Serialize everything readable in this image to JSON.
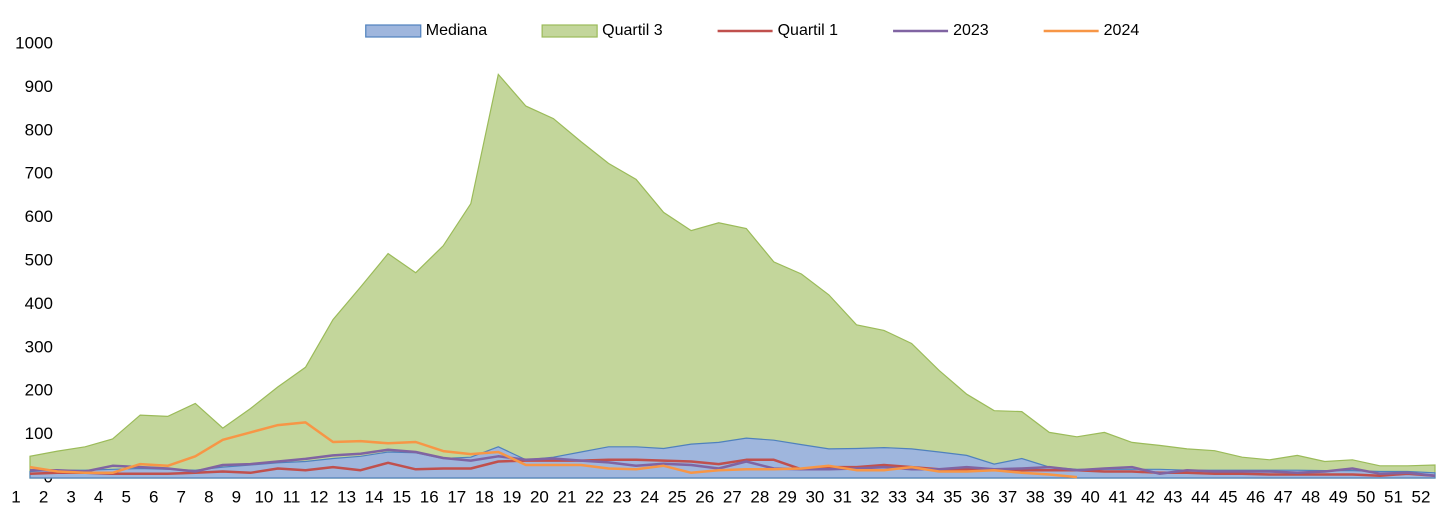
{
  "chart_data": {
    "type": "area",
    "categories": [
      "1",
      "2",
      "3",
      "4",
      "5",
      "6",
      "7",
      "8",
      "9",
      "10",
      "11",
      "12",
      "13",
      "14",
      "15",
      "16",
      "17",
      "18",
      "19",
      "20",
      "21",
      "22",
      "23",
      "24",
      "25",
      "26",
      "27",
      "28",
      "29",
      "30",
      "31",
      "32",
      "33",
      "34",
      "35",
      "36",
      "37",
      "38",
      "39",
      "40",
      "41",
      "42",
      "43",
      "44",
      "45",
      "46",
      "47",
      "48",
      "49",
      "50",
      "51",
      "52"
    ],
    "ylim": [
      0,
      1000
    ],
    "yticks": [
      0,
      100,
      200,
      300,
      400,
      500,
      600,
      700,
      800,
      900,
      1000
    ],
    "grid": false,
    "legend": "top",
    "series": [
      {
        "name": "Mediana",
        "type": "area",
        "color": "#4f81bd",
        "fill": "#9fb6dd",
        "values": [
          15,
          18,
          18,
          20,
          22,
          20,
          18,
          25,
          30,
          35,
          38,
          45,
          50,
          60,
          58,
          45,
          48,
          72,
          42,
          48,
          60,
          72,
          72,
          68,
          78,
          82,
          92,
          87,
          77,
          67,
          68,
          70,
          67,
          60,
          52,
          32,
          45,
          25,
          20,
          20,
          20,
          20,
          18,
          18,
          18,
          18,
          18,
          17,
          17,
          15,
          15,
          12
        ]
      },
      {
        "name": "Quartil 3",
        "type": "area",
        "color": "#9bbb59",
        "fill": "#c3d69b",
        "values": [
          50,
          62,
          72,
          90,
          145,
          142,
          172,
          115,
          160,
          210,
          255,
          365,
          440,
          517,
          473,
          535,
          632,
          930,
          857,
          828,
          775,
          725,
          688,
          612,
          570,
          588,
          575,
          498,
          470,
          422,
          353,
          340,
          310,
          248,
          193,
          155,
          153,
          105,
          95,
          105,
          82,
          75,
          67,
          63,
          48,
          42,
          52,
          38,
          42,
          28,
          28,
          30
        ]
      },
      {
        "name": "Quartil 1",
        "type": "line",
        "color": "#c0504d",
        "values": [
          10,
          12,
          12,
          10,
          10,
          10,
          12,
          15,
          12,
          22,
          18,
          25,
          18,
          35,
          20,
          22,
          22,
          38,
          40,
          40,
          40,
          42,
          42,
          40,
          38,
          32,
          42,
          42,
          20,
          25,
          25,
          30,
          25,
          20,
          20,
          20,
          18,
          18,
          18,
          15,
          15,
          12,
          12,
          10,
          10,
          8,
          8,
          8,
          8,
          5,
          10,
          5
        ]
      },
      {
        "name": "2023",
        "type": "line",
        "color": "#8064a2",
        "values": [
          18,
          18,
          15,
          28,
          25,
          22,
          15,
          30,
          32,
          38,
          44,
          52,
          56,
          65,
          60,
          46,
          40,
          50,
          42,
          45,
          40,
          36,
          28,
          33,
          30,
          22,
          38,
          22,
          20,
          20,
          22,
          25,
          20,
          20,
          25,
          20,
          22,
          25,
          18,
          22,
          25,
          10,
          18,
          15,
          15,
          15,
          12,
          15,
          22,
          10,
          12,
          5
        ]
      },
      {
        "name": "2024",
        "type": "line",
        "color": "#f79646",
        "values": [
          25,
          15,
          12,
          12,
          32,
          28,
          50,
          88,
          105,
          122,
          128,
          83,
          85,
          80,
          83,
          62,
          55,
          60,
          30,
          30,
          30,
          22,
          20,
          28,
          12,
          18,
          20,
          20,
          22,
          28,
          18,
          18,
          25,
          15,
          15,
          18,
          12,
          8,
          2,
          null,
          null,
          null,
          null,
          null,
          null,
          null,
          null,
          null,
          null,
          null,
          null,
          null
        ]
      }
    ]
  }
}
